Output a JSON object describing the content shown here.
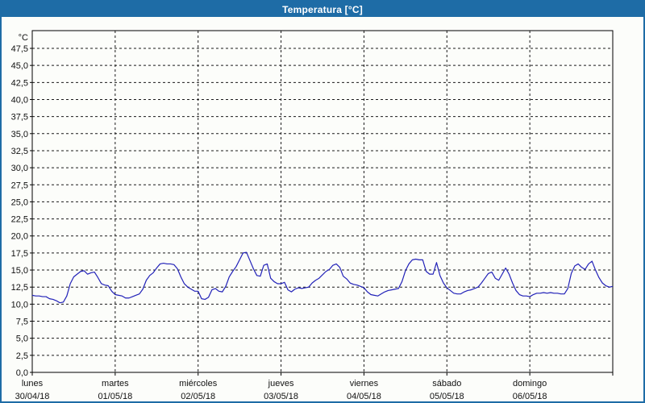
{
  "window": {
    "title": "Temperatura [°C]",
    "title_bar_color": "#1e6ca6",
    "border_color": "#1e6ca6",
    "background_color": "#fcfdfa"
  },
  "chart_data": {
    "type": "line",
    "title": "Temperatura [°C]",
    "y_unit_label": "°C",
    "ylim": [
      0,
      50
    ],
    "y_tick_step": 2.5,
    "y_tick_labels": [
      "0,0",
      "2,5",
      "5,0",
      "7,5",
      "10,0",
      "12,5",
      "15,0",
      "17,5",
      "20,0",
      "22,5",
      "25,0",
      "27,5",
      "30,0",
      "32,5",
      "35,0",
      "37,5",
      "40,0",
      "42,5",
      "45,0",
      "47,5"
    ],
    "grid": "dashed",
    "grid_color": "#1a1a1a",
    "line_color": "#2121b8",
    "x_days": [
      {
        "name": "lunes",
        "date": "30/04/18"
      },
      {
        "name": "martes",
        "date": "01/05/18"
      },
      {
        "name": "miércoles",
        "date": "02/05/18"
      },
      {
        "name": "jueves",
        "date": "03/05/18"
      },
      {
        "name": "viernes",
        "date": "04/05/18"
      },
      {
        "name": "sábado",
        "date": "05/05/18"
      },
      {
        "name": "domingo",
        "date": "06/05/18"
      }
    ],
    "series": [
      {
        "name": "Temperatura",
        "unit": "°C",
        "hourly_values_by_day": [
          [
            11.3,
            11.2,
            11.2,
            11.1,
            11.1,
            10.8,
            10.7,
            10.5,
            10.2,
            10.3,
            11.2,
            13.0,
            14.0,
            14.4,
            14.8,
            14.9,
            14.4,
            14.6,
            14.7,
            13.9,
            13.0,
            12.8,
            12.7,
            11.9
          ],
          [
            11.4,
            11.3,
            11.2,
            10.9,
            10.9,
            11.1,
            11.3,
            11.5,
            12.2,
            13.5,
            14.2,
            14.6,
            15.3,
            15.9,
            16.0,
            15.9,
            15.9,
            15.8,
            15.2,
            14.0,
            13.0,
            12.5,
            12.2,
            11.9
          ],
          [
            11.9,
            10.8,
            10.7,
            11.0,
            12.1,
            12.3,
            11.9,
            11.8,
            12.6,
            14.0,
            14.8,
            15.5,
            16.5,
            17.5,
            17.6,
            16.4,
            15.2,
            14.2,
            14.1,
            15.7,
            15.9,
            13.8,
            13.3,
            13.0
          ],
          [
            13.0,
            13.2,
            12.1,
            11.8,
            12.2,
            12.4,
            12.3,
            12.4,
            12.5,
            13.1,
            13.5,
            13.8,
            14.3,
            14.8,
            15.1,
            15.7,
            15.9,
            15.4,
            14.1,
            13.7,
            13.1,
            12.9,
            12.8,
            12.6
          ],
          [
            12.4,
            11.8,
            11.4,
            11.3,
            11.2,
            11.5,
            11.8,
            12.0,
            12.1,
            12.2,
            12.3,
            13.3,
            14.9,
            15.9,
            16.5,
            16.6,
            16.5,
            16.5,
            14.8,
            14.4,
            14.4,
            16.1,
            14.2,
            13.1
          ],
          [
            12.4,
            12.0,
            11.6,
            11.5,
            11.5,
            11.8,
            12.0,
            12.1,
            12.3,
            12.5,
            13.1,
            13.8,
            14.5,
            14.7,
            13.8,
            13.5,
            14.4,
            15.3,
            14.4,
            13.1,
            12.0,
            11.4,
            11.2,
            11.2
          ],
          [
            11.1,
            11.4,
            11.6,
            11.6,
            11.7,
            11.6,
            11.7,
            11.6,
            11.6,
            11.5,
            11.5,
            12.3,
            14.5,
            15.6,
            15.9,
            15.4,
            15.1,
            15.9,
            16.3,
            15.0,
            13.9,
            13.1,
            12.7,
            12.5
          ]
        ],
        "final_value": 12.6
      }
    ],
    "legend": "none"
  }
}
